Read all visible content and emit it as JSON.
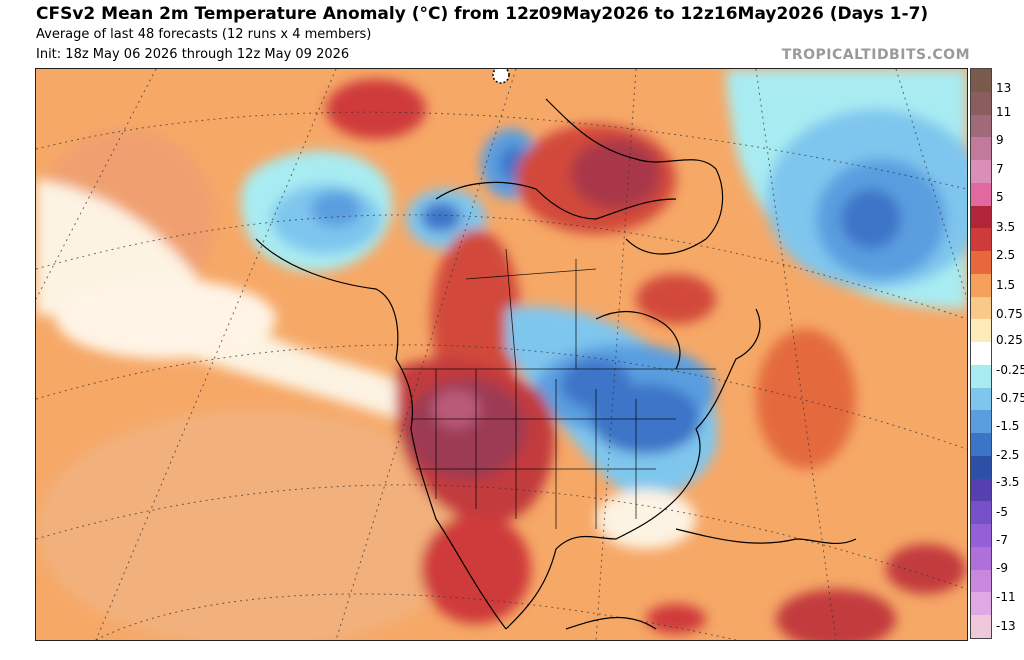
{
  "header": {
    "title": "CFSv2 Mean 2m Temperature Anomaly (°C) from 12z09May2026 to 12z16May2026 (Days 1-7)",
    "subtitle": "Average of last 48 forecasts (12 runs x 4 members)",
    "init": "Init: 18z May 06 2026 through 12z May 09 2026",
    "brand": "TROPICALTIDBITS.COM"
  },
  "colorbar": {
    "labels": [
      "13",
      "11",
      "9",
      "7",
      "5",
      "3.5",
      "2.5",
      "1.5",
      "0.75",
      "0.25",
      "-0.25",
      "-0.75",
      "-1.5",
      "-2.5",
      "-3.5",
      "-5",
      "-7",
      "-9",
      "-11",
      "-13"
    ],
    "colors": [
      "#7a5a4a",
      "#8a5e5e",
      "#a06a7a",
      "#c27a9c",
      "#d98fb8",
      "#e06aa0",
      "#b1243a",
      "#cf3b3b",
      "#e7683d",
      "#f4a05a",
      "#f9c98a",
      "#fdebb8",
      "#ffffff",
      "#a8ecf2",
      "#7fc6ee",
      "#5a9ee0",
      "#3c74c8",
      "#2e4fa6",
      "#5640b0",
      "#7650c8",
      "#9460d8",
      "#b070dc",
      "#c888e0",
      "#e0a8e4",
      "#f0c8dc"
    ]
  }
}
